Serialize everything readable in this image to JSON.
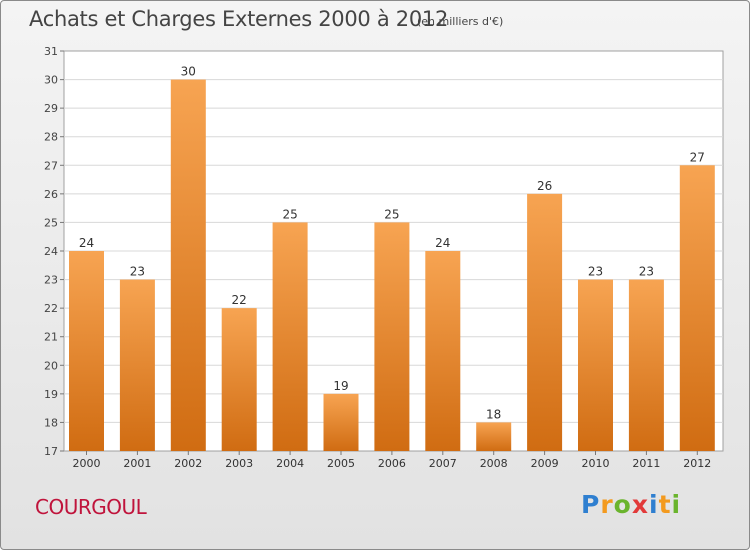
{
  "header": {
    "title": "Achats et Charges Externes 2000 à 2012",
    "unit_note": "(en milliers d'€)"
  },
  "footer": {
    "commune": "COURGOUL",
    "brand": "Proxiti"
  },
  "colors": {
    "bar_top": "#f7a452",
    "bar_bottom": "#d06c12",
    "commune_text": "#c0143c"
  },
  "chart_data": {
    "type": "bar",
    "categories": [
      "2000",
      "2001",
      "2002",
      "2003",
      "2004",
      "2005",
      "2006",
      "2007",
      "2008",
      "2009",
      "2010",
      "2011",
      "2012"
    ],
    "values": [
      24,
      23,
      30,
      22,
      25,
      19,
      25,
      24,
      18,
      26,
      23,
      23,
      27
    ],
    "data_labels": [
      "24",
      "23",
      "30",
      "22",
      "25",
      "19",
      "25",
      "24",
      "18",
      "26",
      "23",
      "23",
      "27"
    ],
    "yticks": [
      17,
      18,
      19,
      20,
      21,
      22,
      23,
      24,
      25,
      26,
      27,
      28,
      29,
      30,
      31
    ],
    "ylim": [
      17,
      31
    ],
    "grid": true,
    "legend": "none"
  }
}
